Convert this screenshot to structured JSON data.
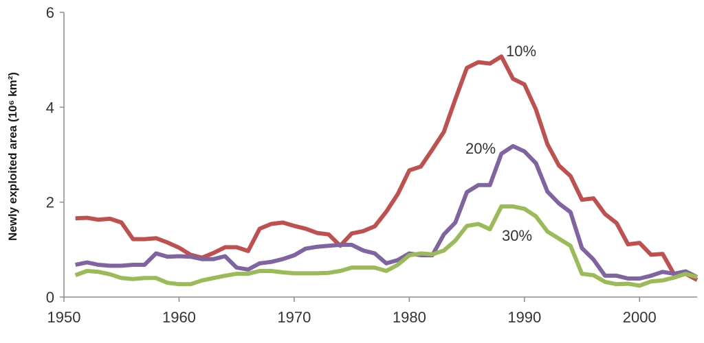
{
  "chart_data": {
    "type": "line",
    "title": "",
    "xlabel": "",
    "ylabel": "Newly exploited area (10⁶ km²)",
    "xlim": [
      1950,
      2005
    ],
    "ylim": [
      0,
      6
    ],
    "xticks": [
      1950,
      1960,
      1970,
      1980,
      1990,
      2000
    ],
    "yticks": [
      0,
      2,
      4,
      6
    ],
    "x": [
      1951,
      1952,
      1953,
      1954,
      1955,
      1956,
      1957,
      1958,
      1959,
      1960,
      1961,
      1962,
      1963,
      1964,
      1965,
      1966,
      1967,
      1968,
      1969,
      1970,
      1971,
      1972,
      1973,
      1974,
      1975,
      1976,
      1977,
      1978,
      1979,
      1980,
      1981,
      1982,
      1983,
      1984,
      1985,
      1986,
      1987,
      1988,
      1989,
      1990,
      1991,
      1992,
      1993,
      1994,
      1995,
      1996,
      1997,
      1998,
      1999,
      2000,
      2001,
      2002,
      2003,
      2004,
      2005
    ],
    "series": [
      {
        "name": "10%",
        "color": "#c0504d",
        "values": [
          1.66,
          1.67,
          1.63,
          1.65,
          1.57,
          1.22,
          1.22,
          1.24,
          1.15,
          1.04,
          0.89,
          0.83,
          0.93,
          1.05,
          1.05,
          0.97,
          1.44,
          1.54,
          1.57,
          1.5,
          1.44,
          1.35,
          1.32,
          1.08,
          1.34,
          1.39,
          1.49,
          1.8,
          2.17,
          2.67,
          2.75,
          3.11,
          3.48,
          4.17,
          4.83,
          4.95,
          4.92,
          5.07,
          4.6,
          4.48,
          3.95,
          3.22,
          2.77,
          2.55,
          2.05,
          2.08,
          1.75,
          1.56,
          1.11,
          1.14,
          0.89,
          0.91,
          0.48,
          0.49,
          0.36
        ]
      },
      {
        "name": "20%",
        "color": "#8064a2",
        "values": [
          0.68,
          0.73,
          0.68,
          0.66,
          0.66,
          0.68,
          0.68,
          0.92,
          0.85,
          0.86,
          0.85,
          0.8,
          0.8,
          0.86,
          0.62,
          0.58,
          0.71,
          0.74,
          0.8,
          0.88,
          1.02,
          1.06,
          1.08,
          1.1,
          1.1,
          0.98,
          0.92,
          0.71,
          0.78,
          0.92,
          0.88,
          0.88,
          1.32,
          1.57,
          2.21,
          2.36,
          2.36,
          3.02,
          3.18,
          3.07,
          2.82,
          2.22,
          1.97,
          1.79,
          1.03,
          0.79,
          0.45,
          0.45,
          0.39,
          0.39,
          0.45,
          0.53,
          0.49,
          0.54,
          0.42
        ]
      },
      {
        "name": "30%",
        "color": "#9bbb59",
        "values": [
          0.46,
          0.55,
          0.53,
          0.48,
          0.4,
          0.38,
          0.4,
          0.4,
          0.3,
          0.27,
          0.27,
          0.35,
          0.4,
          0.45,
          0.49,
          0.49,
          0.55,
          0.55,
          0.52,
          0.5,
          0.5,
          0.5,
          0.51,
          0.55,
          0.62,
          0.62,
          0.62,
          0.55,
          0.68,
          0.88,
          0.92,
          0.9,
          0.98,
          1.19,
          1.5,
          1.54,
          1.43,
          1.91,
          1.91,
          1.86,
          1.7,
          1.38,
          1.23,
          1.08,
          0.49,
          0.46,
          0.32,
          0.27,
          0.28,
          0.24,
          0.33,
          0.35,
          0.41,
          0.49,
          0.42
        ]
      }
    ],
    "annotations": [
      {
        "text": "10%",
        "series": "10%"
      },
      {
        "text": "20%",
        "series": "20%"
      },
      {
        "text": "30%",
        "series": "30%"
      }
    ],
    "grid": false,
    "legend": "inline labels"
  }
}
